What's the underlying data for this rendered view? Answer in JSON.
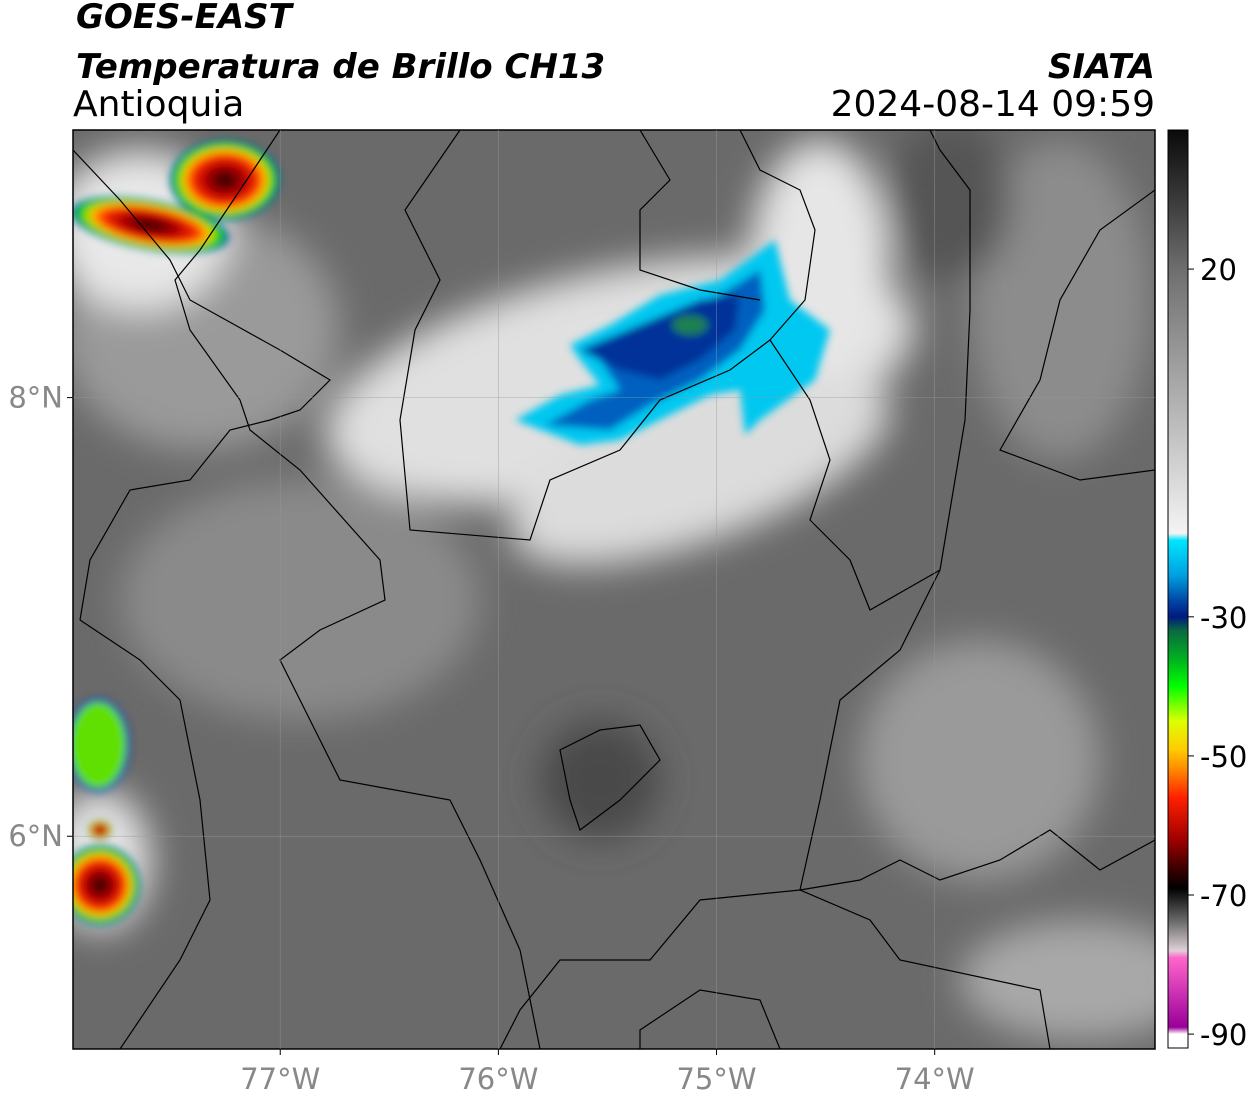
{
  "header": {
    "title": "GOES-EAST",
    "subtitle": "Temperatura de Brillo CH13",
    "region": "Antioquia",
    "source": "SIATA",
    "datetime": "2024-08-14 09:59"
  },
  "map": {
    "xlim": [
      -77.95,
      -72.99
    ],
    "ylim": [
      5.03,
      9.22
    ],
    "xticks": [
      {
        "value": -77,
        "label": "77°W"
      },
      {
        "value": -76,
        "label": "76°W"
      },
      {
        "value": -75,
        "label": "75°W"
      },
      {
        "value": -74,
        "label": "74°W"
      }
    ],
    "yticks": [
      {
        "value": 6,
        "label": "6°N"
      },
      {
        "value": 8,
        "label": "8°N"
      }
    ],
    "grid": true
  },
  "colorbar": {
    "ylim": [
      -92,
      40
    ],
    "yticks": [
      -90,
      -70,
      -50,
      -30,
      20
    ],
    "colormap": [
      {
        "value": 40,
        "color": "#0a0a0a"
      },
      {
        "value": 30,
        "color": "#3a3a3a"
      },
      {
        "value": 20,
        "color": "#6e6e6e"
      },
      {
        "value": 0,
        "color": "#b4b4b4"
      },
      {
        "value": -18,
        "color": "#f4f4f4"
      },
      {
        "value": -19,
        "color": "#00e5ff"
      },
      {
        "value": -24,
        "color": "#00a0e0"
      },
      {
        "value": -28,
        "color": "#0040a0"
      },
      {
        "value": -30,
        "color": "#001a80"
      },
      {
        "value": -32,
        "color": "#0a6a40"
      },
      {
        "value": -36,
        "color": "#00b020"
      },
      {
        "value": -40,
        "color": "#00ff00"
      },
      {
        "value": -45,
        "color": "#ddff00"
      },
      {
        "value": -49,
        "color": "#ffcc00"
      },
      {
        "value": -52,
        "color": "#ff8800"
      },
      {
        "value": -56,
        "color": "#ff2000"
      },
      {
        "value": -62,
        "color": "#a00000"
      },
      {
        "value": -66,
        "color": "#400000"
      },
      {
        "value": -69,
        "color": "#000000"
      },
      {
        "value": -74,
        "color": "#707070"
      },
      {
        "value": -78,
        "color": "#e0d0d8"
      },
      {
        "value": -79,
        "color": "#ff66cc"
      },
      {
        "value": -89,
        "color": "#990099"
      },
      {
        "value": -90,
        "color": "#ffffff"
      },
      {
        "value": -92,
        "color": "#ffffff"
      }
    ]
  }
}
